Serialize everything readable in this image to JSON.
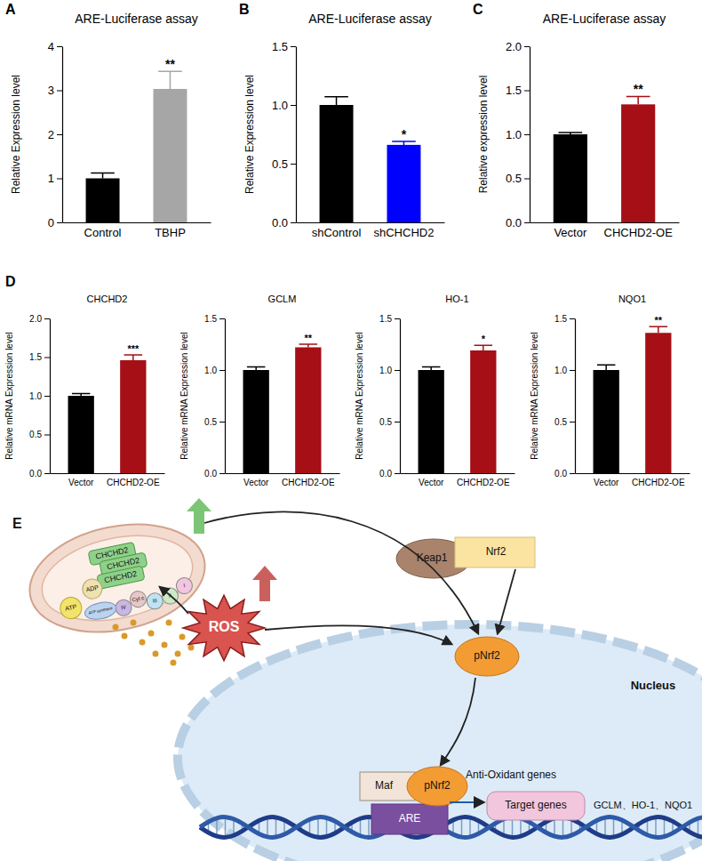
{
  "chart_data": [
    {
      "type": "bar",
      "panel": "A",
      "title": "ARE-Luciferase assay",
      "ylabel": "Relative Expression level",
      "categories": [
        "Control",
        "TBHP"
      ],
      "values": [
        1.0,
        3.03
      ],
      "errors": [
        0.12,
        0.4
      ],
      "colors": [
        "#000000",
        "#a6a6a6"
      ],
      "ylim": [
        0,
        4
      ],
      "yticks": [
        0,
        1,
        2,
        3,
        4
      ],
      "annotations": [
        {
          "category": "TBHP",
          "text": "**"
        }
      ]
    },
    {
      "type": "bar",
      "panel": "B",
      "title": "ARE-Luciferase assay",
      "ylabel": "Relative Expression level",
      "categories": [
        "shControl",
        "shCHCHD2"
      ],
      "values": [
        1.0,
        0.66
      ],
      "errors": [
        0.07,
        0.03
      ],
      "colors": [
        "#000000",
        "#0000ff"
      ],
      "ylim": [
        0,
        1.5
      ],
      "yticks": [
        {
          "value": 0,
          "label": "0.0"
        },
        {
          "value": 0.5,
          "label": "0.5"
        },
        {
          "value": 1,
          "label": "1.0"
        },
        {
          "value": 1.5,
          "label": "1.5"
        }
      ],
      "annotations": [
        {
          "category": "shCHCHD2",
          "text": "*"
        }
      ]
    },
    {
      "type": "bar",
      "panel": "C",
      "title": "ARE-Luciferase assay",
      "ylabel": "Relative expression level",
      "categories": [
        "Vector",
        "CHCHD2-OE"
      ],
      "values": [
        1.0,
        1.34
      ],
      "errors": [
        0.02,
        0.09
      ],
      "colors": [
        "#000000",
        "#a50f15"
      ],
      "ylim": [
        0,
        2
      ],
      "yticks": [
        {
          "value": 0,
          "label": "0.0"
        },
        {
          "value": 0.5,
          "label": "0.5"
        },
        {
          "value": 1,
          "label": "1.0"
        },
        {
          "value": 1.5,
          "label": "1.5"
        },
        {
          "value": 2,
          "label": "2.0"
        }
      ],
      "annotations": [
        {
          "category": "CHCHD2-OE",
          "text": "**"
        }
      ]
    },
    {
      "type": "bar",
      "panel": "D",
      "title": "CHCHD2",
      "ylabel": "Relative mRNA Expression level",
      "categories": [
        "Vector",
        "CHCHD2-OE"
      ],
      "values": [
        1.0,
        1.46
      ],
      "errors": [
        0.03,
        0.07
      ],
      "colors": [
        "#000000",
        "#a50f15"
      ],
      "ylim": [
        0,
        2
      ],
      "yticks": [
        {
          "value": 0,
          "label": "0.0"
        },
        {
          "value": 0.5,
          "label": "0.5"
        },
        {
          "value": 1,
          "label": "1.0"
        },
        {
          "value": 1.5,
          "label": "1.5"
        },
        {
          "value": 2,
          "label": "2.0"
        }
      ],
      "annotations": [
        {
          "category": "CHCHD2-OE",
          "text": "***"
        }
      ]
    },
    {
      "type": "bar",
      "title": "GCLM",
      "ylabel": "Relative mRNA Expression level",
      "categories": [
        "Vector",
        "CHCHD2-OE"
      ],
      "values": [
        1.0,
        1.22
      ],
      "errors": [
        0.03,
        0.03
      ],
      "colors": [
        "#000000",
        "#a50f15"
      ],
      "ylim": [
        0,
        1.5
      ],
      "yticks": [
        {
          "value": 0,
          "label": "0.0"
        },
        {
          "value": 0.5,
          "label": "0.5"
        },
        {
          "value": 1,
          "label": "1.0"
        },
        {
          "value": 1.5,
          "label": "1.5"
        }
      ],
      "annotations": [
        {
          "category": "CHCHD2-OE",
          "text": "**"
        }
      ]
    },
    {
      "type": "bar",
      "title": "HO-1",
      "ylabel": "Relative mRNA Expression level",
      "categories": [
        "Vector",
        "CHCHD2-OE"
      ],
      "values": [
        1.0,
        1.19
      ],
      "errors": [
        0.03,
        0.05
      ],
      "colors": [
        "#000000",
        "#a50f15"
      ],
      "ylim": [
        0,
        1.5
      ],
      "yticks": [
        {
          "value": 0,
          "label": "0.0"
        },
        {
          "value": 0.5,
          "label": "0.5"
        },
        {
          "value": 1,
          "label": "1.0"
        },
        {
          "value": 1.5,
          "label": "1.5"
        }
      ],
      "annotations": [
        {
          "category": "CHCHD2-OE",
          "text": "*"
        }
      ]
    },
    {
      "type": "bar",
      "title": "NQO1",
      "ylabel": "Relative mRNA Expression level",
      "categories": [
        "Vector",
        "CHCHD2-OE"
      ],
      "values": [
        1.0,
        1.36
      ],
      "errors": [
        0.05,
        0.06
      ],
      "colors": [
        "#000000",
        "#a50f15"
      ],
      "ylim": [
        0,
        1.5
      ],
      "yticks": [
        {
          "value": 0,
          "label": "0.0"
        },
        {
          "value": 0.5,
          "label": "0.5"
        },
        {
          "value": 1,
          "label": "1.0"
        },
        {
          "value": 1.5,
          "label": "1.5"
        }
      ],
      "annotations": [
        {
          "category": "CHCHD2-OE",
          "text": "**"
        }
      ]
    }
  ],
  "diagram": {
    "panel": "E",
    "mitochondrion": {
      "proteins": [
        "CHCHD2",
        "CHCHD2",
        "CHCHD2"
      ],
      "atp": "ATP",
      "adp": "ADP",
      "atp_synthase": "ATP synthase",
      "complexes": [
        "IV",
        "Cyt c",
        "III",
        "II",
        "I"
      ]
    },
    "ros": "ROS",
    "cytoplasm": {
      "keap1": "Keap1",
      "nrf2": "Nrf2",
      "pnrf2": "pNrf2"
    },
    "nucleus": {
      "label": "Nucleus",
      "maf": "Maf",
      "pnrf2": "pNrf2",
      "are": "ARE",
      "annotation": "Anti-Oxidant genes",
      "target": "Target genes",
      "genes": "GCLM、HO-1、NQO1"
    }
  }
}
